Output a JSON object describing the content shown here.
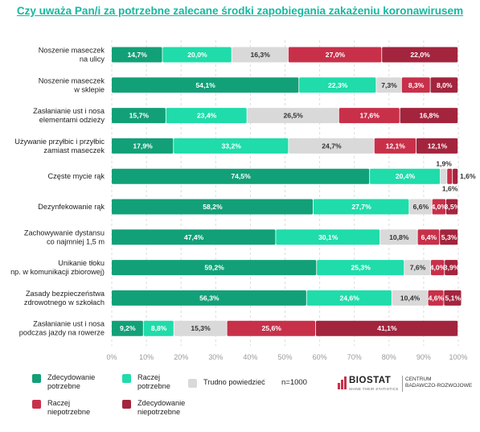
{
  "title": "Czy uważa Pan/i za potrzebne zalecane środki zapobiegania zakażeniu koronawirusem",
  "note": "n=1000",
  "logo": {
    "name": "BIOSTAT",
    "tagline": "SHINE THEIR STATISTICS",
    "side": "CENTRUM\nBADAWCZO-ROZWOJOWE"
  },
  "colors": {
    "zdecydowanie_potrzebne": "#12a078",
    "raczej_potrzebne": "#1fdcaa",
    "trudno_powiedziec": "#d9d9d9",
    "raczej_niepotrzebne": "#c8304a",
    "zdecydowanie_niepotrzebne": "#a3243d",
    "title": "#16b8a0"
  },
  "chart_data": {
    "type": "bar",
    "orientation": "horizontal",
    "stacked": true,
    "title": "Czy uważa Pan/i za potrzebne zalecane środki zapobiegania zakażeniu koronawirusem",
    "xlim": [
      0,
      100
    ],
    "xticks": [
      "0%",
      "10%",
      "20%",
      "30%",
      "40%",
      "50%",
      "60%",
      "70%",
      "80%",
      "90%",
      "100%"
    ],
    "grid": true,
    "legend_position": "bottom",
    "categories": [
      "Noszenie maseczek\nna ulicy",
      "Noszenie maseczek\nw sklepie",
      "Zasłanianie ust i nosa\nelementami odzieży",
      "Używanie przyłbic i przyłbic\nzamiast maseczek",
      "Częste mycie rąk",
      "Dezynfekowanie rąk",
      "Zachowywanie dystansu\nco najmniej 1,5 m",
      "Unikanie tłoku\nnp. w komunikacji zbiorowej)",
      "Zasady bezpieczeństwa\nzdrowotnego w szkołach",
      "Zasłanianie ust i nosa\npodczas jazdy na rowerze"
    ],
    "series": [
      {
        "name": "Zdecydowanie\npotrzebne",
        "values": [
          14.7,
          54.1,
          15.7,
          17.9,
          74.5,
          58.2,
          47.4,
          59.2,
          56.3,
          9.2
        ],
        "labels": [
          "14,7%",
          "54,1%",
          "15,7%",
          "17,9%",
          "74,5%",
          "58,2%",
          "47,4%",
          "59,2%",
          "56,3%",
          "9,2%"
        ]
      },
      {
        "name": "Raczej\npotrzebne",
        "values": [
          20.0,
          22.3,
          23.4,
          33.2,
          20.4,
          27.7,
          30.1,
          25.3,
          24.6,
          8.8
        ],
        "labels": [
          "20,0%",
          "22,3%",
          "23,4%",
          "33,2%",
          "20,4%",
          "27,7%",
          "30,1%",
          "25,3%",
          "24,6%",
          "8,8%"
        ]
      },
      {
        "name": "Trudno powiedzieć",
        "values": [
          16.3,
          7.3,
          26.5,
          24.7,
          1.9,
          6.6,
          10.8,
          7.6,
          10.4,
          15.3
        ],
        "labels": [
          "16,3%",
          "7,3%",
          "26,5%",
          "24,7%",
          "1,9%",
          "6,6%",
          "10,8%",
          "7,6%",
          "10,4%",
          "15,3%"
        ]
      },
      {
        "name": "Raczej\nniepotrzebne",
        "values": [
          27.0,
          8.3,
          17.6,
          12.1,
          1.6,
          4.0,
          6.4,
          4.0,
          4.6,
          25.6
        ],
        "labels": [
          "27,0%",
          "8,3%",
          "17,6%",
          "12,1%",
          "1,6%",
          "4,0%",
          "6,4%",
          "4,0%",
          "4,6%",
          "25,6%"
        ]
      },
      {
        "name": "Zdecydowanie\nniepotrzebne",
        "values": [
          22.0,
          8.0,
          16.8,
          12.1,
          1.6,
          3.5,
          5.3,
          3.9,
          5.1,
          41.1
        ],
        "labels": [
          "22,0%",
          "8,0%",
          "16,8%",
          "12,1%",
          "1,6%",
          "3,5%",
          "5,3%",
          "3,9%",
          "5,1%",
          "41,1%"
        ]
      }
    ]
  }
}
